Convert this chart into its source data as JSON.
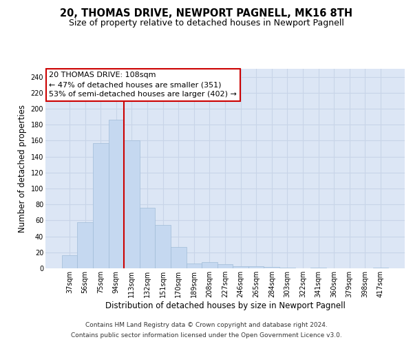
{
  "title": "20, THOMAS DRIVE, NEWPORT PAGNELL, MK16 8TH",
  "subtitle": "Size of property relative to detached houses in Newport Pagnell",
  "xlabel": "Distribution of detached houses by size in Newport Pagnell",
  "ylabel": "Number of detached properties",
  "bar_labels": [
    "37sqm",
    "56sqm",
    "75sqm",
    "94sqm",
    "113sqm",
    "132sqm",
    "151sqm",
    "170sqm",
    "189sqm",
    "208sqm",
    "227sqm",
    "246sqm",
    "265sqm",
    "284sqm",
    "303sqm",
    "322sqm",
    "341sqm",
    "360sqm",
    "379sqm",
    "398sqm",
    "417sqm"
  ],
  "bar_values": [
    16,
    58,
    157,
    186,
    160,
    76,
    54,
    27,
    6,
    8,
    5,
    3,
    3,
    2,
    1,
    0,
    1,
    0,
    0,
    0,
    1
  ],
  "bar_color": "#c5d8f0",
  "bar_edgecolor": "#a0bcd8",
  "vline_color": "#cc0000",
  "vline_x": 3.5,
  "annotation_title": "20 THOMAS DRIVE: 108sqm",
  "annotation_line1": "← 47% of detached houses are smaller (351)",
  "annotation_line2": "53% of semi-detached houses are larger (402) →",
  "annotation_box_edgecolor": "#cc0000",
  "ylim": [
    0,
    250
  ],
  "yticks": [
    0,
    20,
    40,
    60,
    80,
    100,
    120,
    140,
    160,
    180,
    200,
    220,
    240
  ],
  "grid_color": "#c8d4e8",
  "bg_color": "#dce6f5",
  "footer1": "Contains HM Land Registry data © Crown copyright and database right 2024.",
  "footer2": "Contains public sector information licensed under the Open Government Licence v3.0.",
  "title_fontsize": 10.5,
  "subtitle_fontsize": 9,
  "xlabel_fontsize": 8.5,
  "ylabel_fontsize": 8.5,
  "tick_fontsize": 7,
  "annotation_fontsize": 8,
  "footer_fontsize": 6.5
}
